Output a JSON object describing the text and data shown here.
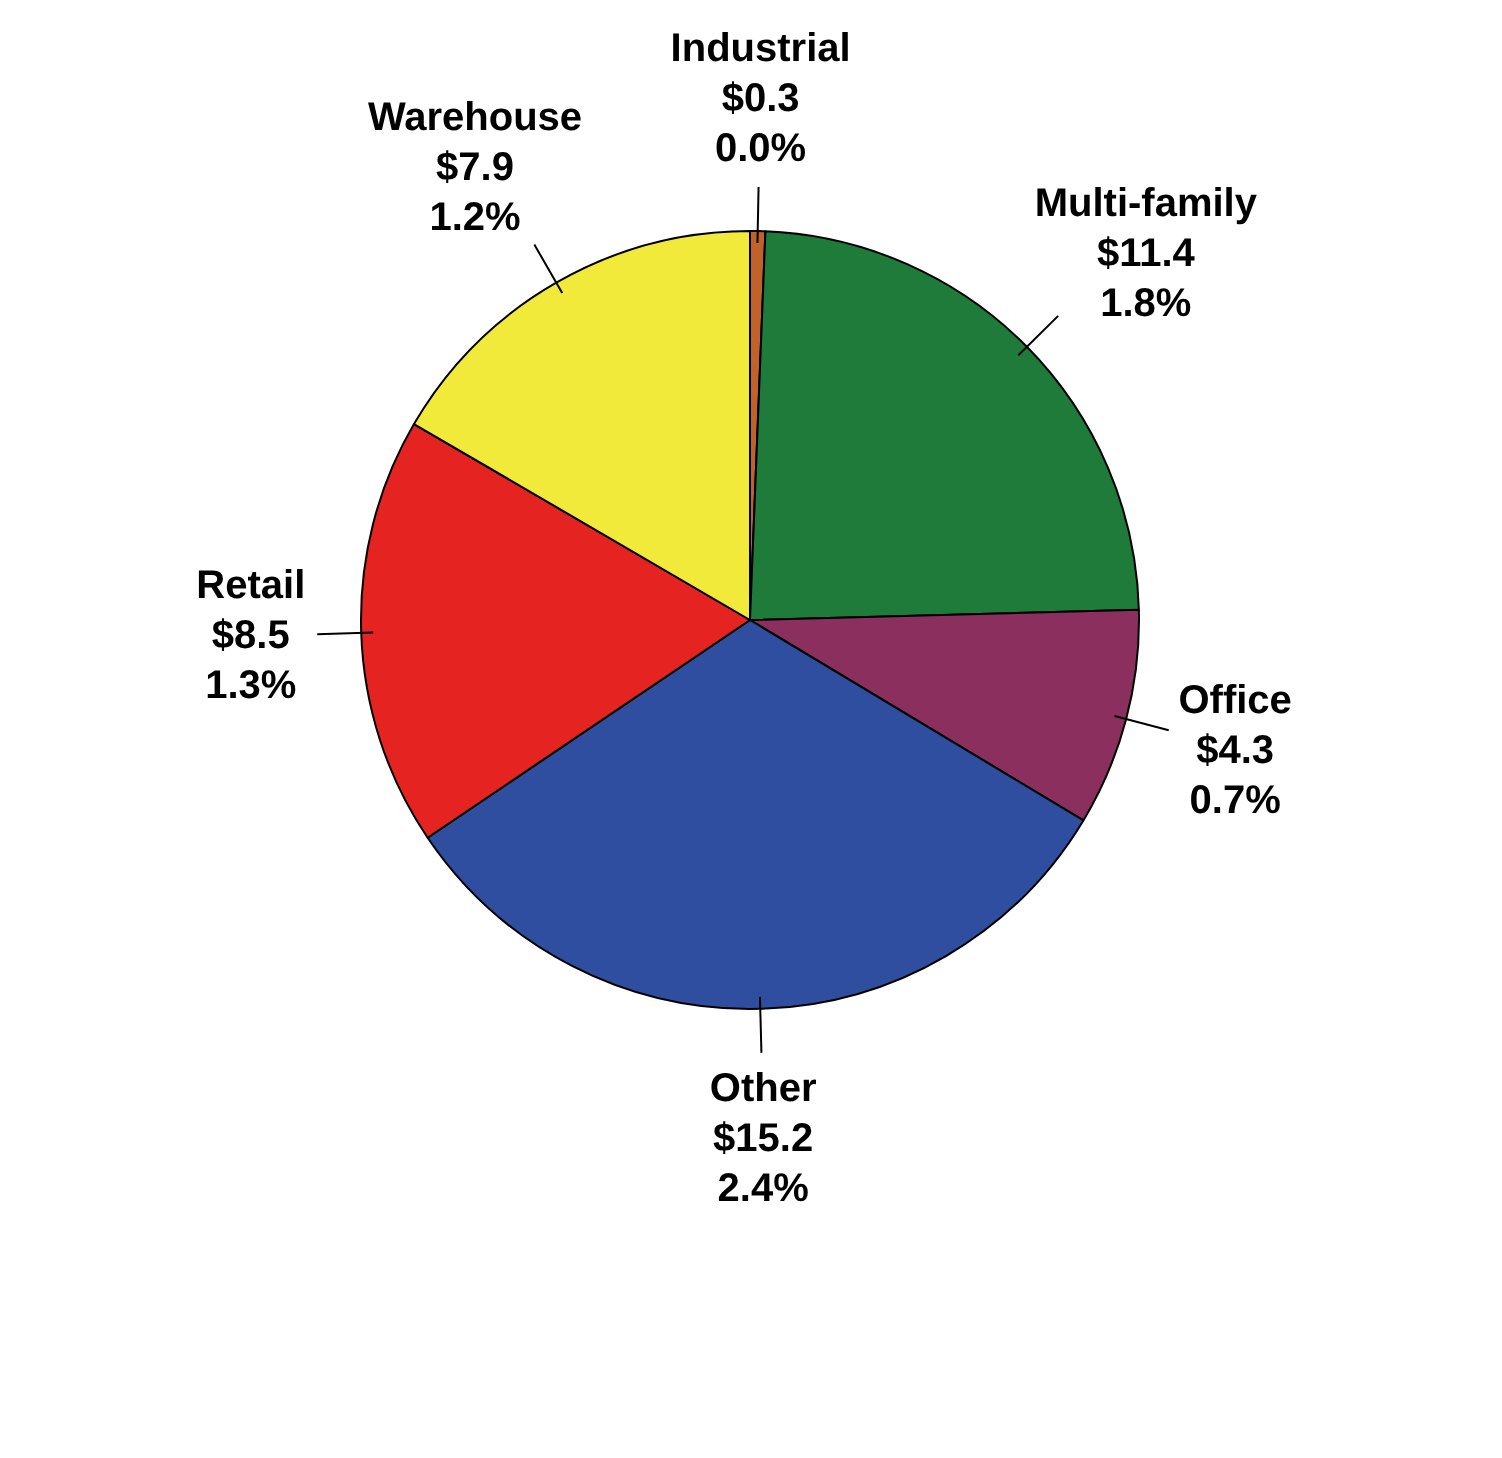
{
  "chart_data": {
    "type": "pie",
    "categories": [
      "Industrial",
      "Multi-family",
      "Office",
      "Other",
      "Retail",
      "Warehouse"
    ],
    "values": [
      0.3,
      11.4,
      4.3,
      15.2,
      8.5,
      7.9
    ],
    "value_labels": [
      "$0.3\n0.0%",
      "$11.4\n1.8%",
      "$4.3\n0.7%",
      "$15.2\n2.4%",
      "$8.5\n1.3%",
      "$7.9\n1.2%"
    ],
    "colors": [
      "#c0622a",
      "#1e7b3a",
      "#8b2f5f",
      "#2f4ea0",
      "#e52421",
      "#f2ea3a"
    ],
    "legend": false
  }
}
